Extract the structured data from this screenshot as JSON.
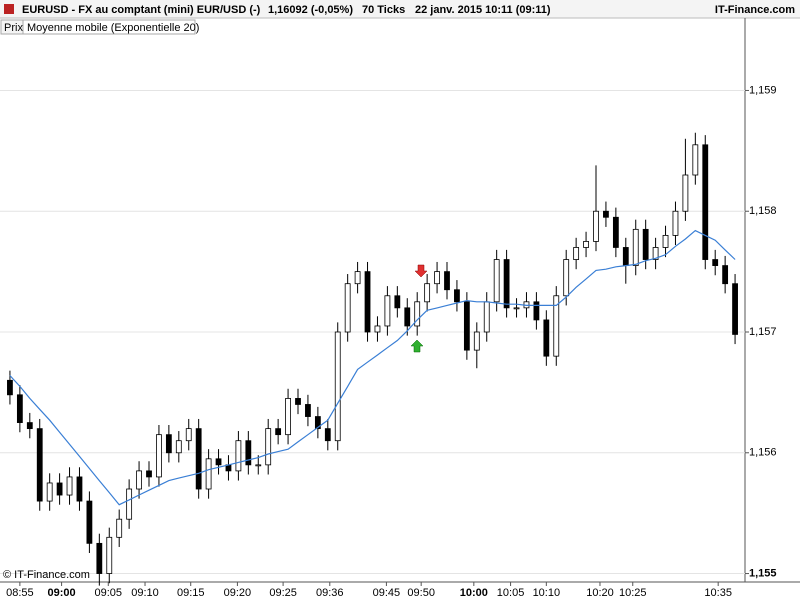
{
  "chart_data": {
    "type": "candlestick",
    "header": {
      "symbol": "EURUSD - FX au comptant (mini) EUR/USD (-)",
      "price": "1,16092 (-0,05%)",
      "period": "70 Ticks",
      "date": "22 janv. 2015 10:11 (09:11)",
      "brand": "IT-Finance.com"
    },
    "footer": "© IT-Finance.com",
    "candles": {
      "name": "Prix",
      "up_color": "#ffffff",
      "down_color": "#000000",
      "open": [
        1.1566,
        1.15648,
        1.15625,
        1.1562,
        1.1556,
        1.15575,
        1.15565,
        1.1558,
        1.1556,
        1.15525,
        1.155,
        1.1553,
        1.15545,
        1.1557,
        1.15585,
        1.1558,
        1.15615,
        1.156,
        1.1561,
        1.1562,
        1.1557,
        1.15595,
        1.1559,
        1.15585,
        1.1561,
        1.1559,
        1.1559,
        1.1562,
        1.15615,
        1.15645,
        1.1564,
        1.1563,
        1.1562,
        1.1561,
        1.157,
        1.1574,
        1.1575,
        1.157,
        1.15705,
        1.1573,
        1.1572,
        1.15705,
        1.15725,
        1.1574,
        1.1575,
        1.15735,
        1.15725,
        1.15685,
        1.157,
        1.15725,
        1.1576,
        1.1572,
        1.1572,
        1.15725,
        1.1571,
        1.1568,
        1.1573,
        1.1576,
        1.1577,
        1.15775,
        1.158,
        1.15795,
        1.1577,
        1.15755,
        1.15785,
        1.1576,
        1.1577,
        1.1578,
        1.158,
        1.1583,
        1.15855,
        1.1576,
        1.15755,
        1.1574
      ],
      "high": [
        1.15668,
        1.15656,
        1.15633,
        1.15628,
        1.15583,
        1.15583,
        1.15588,
        1.15588,
        1.15568,
        1.15533,
        1.15538,
        1.15553,
        1.15578,
        1.15593,
        1.15593,
        1.15623,
        1.15623,
        1.15618,
        1.15628,
        1.15628,
        1.15603,
        1.15603,
        1.15598,
        1.15618,
        1.15618,
        1.15598,
        1.15628,
        1.15628,
        1.15653,
        1.15653,
        1.15648,
        1.15638,
        1.15628,
        1.15708,
        1.15748,
        1.15758,
        1.15758,
        1.15713,
        1.15738,
        1.15738,
        1.15728,
        1.15733,
        1.15748,
        1.15758,
        1.15758,
        1.15743,
        1.15733,
        1.15708,
        1.15733,
        1.15768,
        1.15768,
        1.15728,
        1.15733,
        1.15733,
        1.15718,
        1.15738,
        1.15768,
        1.15778,
        1.15783,
        1.15838,
        1.15808,
        1.15803,
        1.15778,
        1.15793,
        1.15793,
        1.15778,
        1.15788,
        1.15808,
        1.1586,
        1.15865,
        1.15863,
        1.15768,
        1.15763,
        1.15748
      ],
      "low": [
        1.1564,
        1.15617,
        1.15612,
        1.15552,
        1.15552,
        1.15557,
        1.15557,
        1.15552,
        1.15517,
        1.1549,
        1.15492,
        1.15522,
        1.15537,
        1.15562,
        1.15572,
        1.15572,
        1.15592,
        1.15592,
        1.15602,
        1.15562,
        1.15562,
        1.15582,
        1.15577,
        1.15577,
        1.15582,
        1.15582,
        1.15582,
        1.15607,
        1.15607,
        1.15632,
        1.15622,
        1.15612,
        1.15602,
        1.15602,
        1.15692,
        1.15732,
        1.15692,
        1.15692,
        1.15697,
        1.15712,
        1.15697,
        1.15697,
        1.15717,
        1.15732,
        1.15727,
        1.15717,
        1.15677,
        1.1567,
        1.15692,
        1.15717,
        1.15712,
        1.15712,
        1.15712,
        1.15702,
        1.15672,
        1.15672,
        1.15722,
        1.15752,
        1.15762,
        1.15767,
        1.15787,
        1.15762,
        1.1574,
        1.15747,
        1.15752,
        1.15752,
        1.15762,
        1.15772,
        1.15792,
        1.15822,
        1.15752,
        1.15747,
        1.15732,
        1.1569
      ],
      "close": [
        1.15648,
        1.15625,
        1.1562,
        1.1556,
        1.15575,
        1.15565,
        1.1558,
        1.1556,
        1.15525,
        1.155,
        1.1553,
        1.15545,
        1.1557,
        1.15585,
        1.1558,
        1.15615,
        1.156,
        1.1561,
        1.1562,
        1.1557,
        1.15595,
        1.1559,
        1.15585,
        1.1561,
        1.1559,
        1.1559,
        1.1562,
        1.15615,
        1.15645,
        1.1564,
        1.1563,
        1.1562,
        1.1561,
        1.157,
        1.1574,
        1.1575,
        1.157,
        1.15705,
        1.1573,
        1.1572,
        1.15705,
        1.15725,
        1.1574,
        1.1575,
        1.15735,
        1.15725,
        1.15685,
        1.157,
        1.15725,
        1.1576,
        1.1572,
        1.1572,
        1.15725,
        1.1571,
        1.1568,
        1.1573,
        1.1576,
        1.1577,
        1.15775,
        1.158,
        1.15795,
        1.1577,
        1.15755,
        1.15785,
        1.1576,
        1.1577,
        1.1578,
        1.158,
        1.1583,
        1.15855,
        1.1576,
        1.15755,
        1.1574,
        1.15698
      ]
    },
    "series": [
      {
        "name": "Moyenne mobile (Exponentielle 20)",
        "color": "#3a7fd5",
        "values": [
          1.15664,
          1.15655,
          1.15645,
          1.15636,
          1.15627,
          1.15617,
          1.15607,
          1.15597,
          1.15587,
          1.15577,
          1.15567,
          1.15557,
          1.15561,
          1.15565,
          1.15569,
          1.15573,
          1.15577,
          1.15579,
          1.15581,
          1.15583,
          1.15586,
          1.15588,
          1.1559,
          1.15592,
          1.15594,
          1.15596,
          1.15599,
          1.15601,
          1.15603,
          1.15609,
          1.15615,
          1.15621,
          1.15627,
          1.15641,
          1.15655,
          1.15669,
          1.15675,
          1.15681,
          1.15687,
          1.15693,
          1.15701,
          1.1571,
          1.15718,
          1.1572,
          1.15722,
          1.15724,
          1.15726,
          1.15725,
          1.15725,
          1.15724,
          1.15723,
          1.15723,
          1.15722,
          1.15722,
          1.15722,
          1.15722,
          1.15729,
          1.15737,
          1.15744,
          1.15751,
          1.15752,
          1.15754,
          1.15755,
          1.15756,
          1.15759,
          1.15761,
          1.15764,
          1.15771,
          1.15777,
          1.15784,
          1.1578,
          1.15776,
          1.15768,
          1.1576
        ]
      }
    ],
    "xlim": [
      -1,
      74
    ],
    "xticks": [
      {
        "value": 1,
        "label": "08:55"
      },
      {
        "value": 5.2,
        "label": "09:00"
      },
      {
        "value": 9.9,
        "label": "09:05"
      },
      {
        "value": 13.6,
        "label": "09:10"
      },
      {
        "value": 18.2,
        "label": "09:15"
      },
      {
        "value": 22.9,
        "label": "09:20"
      },
      {
        "value": 27.5,
        "label": "09:25"
      },
      {
        "value": 32.2,
        "label": "09:36"
      },
      {
        "value": 37.9,
        "label": "09:45"
      },
      {
        "value": 41.4,
        "label": "09:50"
      },
      {
        "value": 46.7,
        "label": "10:00"
      },
      {
        "value": 50.4,
        "label": "10:05"
      },
      {
        "value": 54,
        "label": "10:10"
      },
      {
        "value": 59.4,
        "label": "10:20"
      },
      {
        "value": 62.7,
        "label": "10:25"
      },
      {
        "value": 71.3,
        "label": "10:35"
      }
    ],
    "ylim": [
      1.15493,
      1.1596
    ],
    "yticks": [
      {
        "value": 1.155,
        "label": "1,155"
      },
      {
        "value": 1.156,
        "label": "1,156"
      },
      {
        "value": 1.157,
        "label": "1,157"
      },
      {
        "value": 1.158,
        "label": "1,158"
      },
      {
        "value": 1.159,
        "label": "1,159"
      }
    ],
    "grid": true
  }
}
